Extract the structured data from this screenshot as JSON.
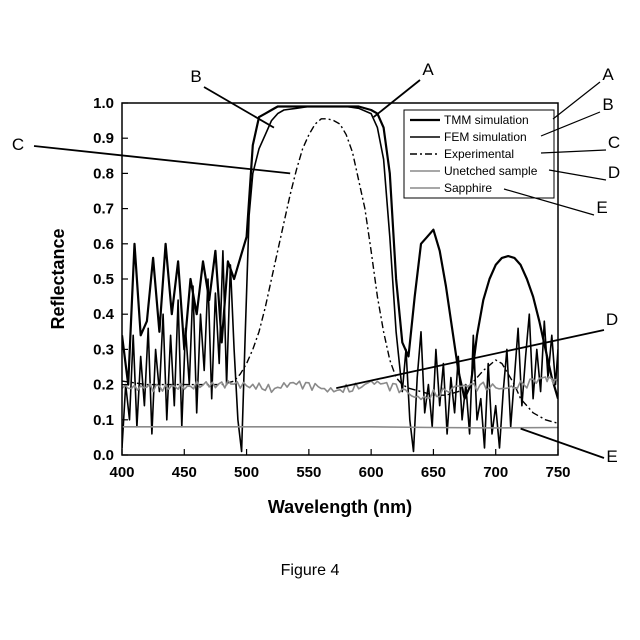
{
  "chart_data": {
    "type": "line",
    "xlabel": "Wavelength (nm)",
    "ylabel": "Reflectance",
    "xlim": [
      400,
      750
    ],
    "ylim": [
      0.0,
      1.0
    ],
    "xticks": [
      "400",
      "450",
      "500",
      "550",
      "600",
      "650",
      "700",
      "750"
    ],
    "yticks": [
      "0.0",
      "0.1",
      "0.2",
      "0.3",
      "0.4",
      "0.5",
      "0.6",
      "0.7",
      "0.8",
      "0.9",
      "1.0"
    ],
    "grid": false,
    "legend_position": "top-right",
    "series": [
      {
        "name": "TMM simulation",
        "letter": "A",
        "style": "solid-thick",
        "color": "#000000",
        "x": [
          400,
          405,
          410,
          415,
          420,
          425,
          430,
          435,
          440,
          445,
          450,
          455,
          460,
          465,
          470,
          475,
          480,
          485,
          490,
          495,
          500,
          505,
          510,
          515,
          520,
          525,
          530,
          540,
          550,
          560,
          570,
          580,
          590,
          600,
          605,
          610,
          615,
          620,
          625,
          630,
          635,
          640,
          645,
          650,
          655,
          660,
          665,
          670,
          675,
          680,
          685,
          690,
          695,
          700,
          705,
          710,
          715,
          720,
          725,
          730,
          735,
          740,
          745,
          750
        ],
        "y": [
          0.34,
          0.2,
          0.6,
          0.34,
          0.38,
          0.56,
          0.35,
          0.6,
          0.4,
          0.55,
          0.3,
          0.5,
          0.4,
          0.55,
          0.44,
          0.58,
          0.32,
          0.55,
          0.5,
          0.56,
          0.62,
          0.88,
          0.96,
          0.97,
          0.98,
          0.99,
          0.99,
          0.99,
          0.99,
          0.99,
          0.99,
          0.99,
          0.99,
          0.98,
          0.97,
          0.93,
          0.8,
          0.5,
          0.32,
          0.28,
          0.45,
          0.6,
          0.62,
          0.64,
          0.58,
          0.48,
          0.36,
          0.24,
          0.16,
          0.2,
          0.34,
          0.44,
          0.5,
          0.54,
          0.56,
          0.565,
          0.56,
          0.54,
          0.5,
          0.45,
          0.38,
          0.3,
          0.22,
          0.16
        ]
      },
      {
        "name": "FEM simulation",
        "letter": "B",
        "style": "solid",
        "color": "#000000",
        "x": [
          400,
          403,
          406,
          409,
          412,
          415,
          418,
          421,
          424,
          427,
          430,
          433,
          436,
          439,
          442,
          445,
          448,
          451,
          454,
          457,
          460,
          463,
          466,
          469,
          472,
          475,
          478,
          481,
          484,
          487,
          490,
          493,
          496,
          499,
          502,
          505,
          510,
          515,
          520,
          525,
          530,
          540,
          550,
          560,
          570,
          580,
          590,
          600,
          605,
          610,
          615,
          620,
          625,
          628,
          631,
          634,
          637,
          640,
          643,
          646,
          649,
          652,
          655,
          658,
          661,
          664,
          667,
          670,
          673,
          676,
          679,
          682,
          685,
          688,
          691,
          694,
          697,
          700,
          703,
          706,
          709,
          712,
          715,
          718,
          721,
          724,
          727,
          730,
          733,
          736,
          739,
          742,
          745,
          748,
          750
        ],
        "y": [
          0.02,
          0.2,
          0.1,
          0.34,
          0.08,
          0.28,
          0.14,
          0.36,
          0.06,
          0.3,
          0.18,
          0.4,
          0.1,
          0.34,
          0.14,
          0.44,
          0.08,
          0.36,
          0.2,
          0.48,
          0.12,
          0.4,
          0.24,
          0.5,
          0.16,
          0.46,
          0.26,
          0.58,
          0.2,
          0.54,
          0.3,
          0.1,
          0.01,
          0.35,
          0.68,
          0.8,
          0.87,
          0.91,
          0.95,
          0.97,
          0.98,
          0.985,
          0.99,
          0.99,
          0.99,
          0.99,
          0.985,
          0.97,
          0.93,
          0.84,
          0.62,
          0.35,
          0.18,
          0.3,
          0.1,
          0.01,
          0.22,
          0.35,
          0.12,
          0.2,
          0.08,
          0.3,
          0.14,
          0.26,
          0.06,
          0.22,
          0.12,
          0.28,
          0.1,
          0.2,
          0.06,
          0.34,
          0.1,
          0.16,
          0.02,
          0.26,
          0.06,
          0.14,
          0.02,
          0.18,
          0.3,
          0.08,
          0.22,
          0.36,
          0.14,
          0.28,
          0.4,
          0.16,
          0.3,
          0.18,
          0.38,
          0.22,
          0.34,
          0.2,
          0.3
        ]
      },
      {
        "name": "Experimental",
        "letter": "C",
        "style": "dash-dot",
        "color": "#000000",
        "x": [
          400,
          420,
          440,
          460,
          470,
          480,
          490,
          495,
          500,
          505,
          510,
          515,
          520,
          525,
          530,
          535,
          540,
          545,
          550,
          555,
          560,
          565,
          570,
          575,
          580,
          585,
          590,
          595,
          600,
          605,
          610,
          615,
          620,
          625,
          630,
          640,
          650,
          660,
          670,
          680,
          690,
          700,
          705,
          710,
          715,
          720,
          730,
          740,
          750
        ],
        "y": [
          0.21,
          0.2,
          0.2,
          0.2,
          0.2,
          0.2,
          0.21,
          0.23,
          0.26,
          0.3,
          0.35,
          0.42,
          0.5,
          0.58,
          0.66,
          0.74,
          0.81,
          0.87,
          0.91,
          0.94,
          0.955,
          0.955,
          0.95,
          0.94,
          0.91,
          0.86,
          0.78,
          0.7,
          0.58,
          0.45,
          0.35,
          0.27,
          0.22,
          0.2,
          0.19,
          0.18,
          0.17,
          0.17,
          0.18,
          0.2,
          0.24,
          0.27,
          0.26,
          0.23,
          0.2,
          0.16,
          0.12,
          0.1,
          0.09
        ]
      },
      {
        "name": "Unetched sample",
        "letter": "D",
        "style": "solid-gray-noisy",
        "color": "#8a8a8a",
        "x": [
          400,
          420,
          440,
          460,
          480,
          500,
          520,
          540,
          560,
          580,
          600,
          620,
          640,
          660,
          680,
          700,
          720,
          740,
          750
        ],
        "y": [
          0.2,
          0.19,
          0.19,
          0.2,
          0.2,
          0.2,
          0.19,
          0.2,
          0.19,
          0.19,
          0.2,
          0.19,
          0.17,
          0.18,
          0.19,
          0.2,
          0.2,
          0.21,
          0.21
        ]
      },
      {
        "name": "Sapphire",
        "letter": "E",
        "style": "solid-gray",
        "color": "#8a8a8a",
        "x": [
          400,
          450,
          500,
          550,
          600,
          650,
          700,
          750
        ],
        "y": [
          0.08,
          0.08,
          0.08,
          0.08,
          0.08,
          0.078,
          0.077,
          0.078
        ]
      }
    ],
    "annotations": [
      {
        "letter": "A",
        "series": "TMM simulation"
      },
      {
        "letter": "B",
        "series": "FEM simulation"
      },
      {
        "letter": "C",
        "series": "Experimental"
      },
      {
        "letter": "D",
        "series": "Unetched sample"
      },
      {
        "letter": "E",
        "series": "Sapphire"
      }
    ]
  },
  "caption": "Figure 4"
}
